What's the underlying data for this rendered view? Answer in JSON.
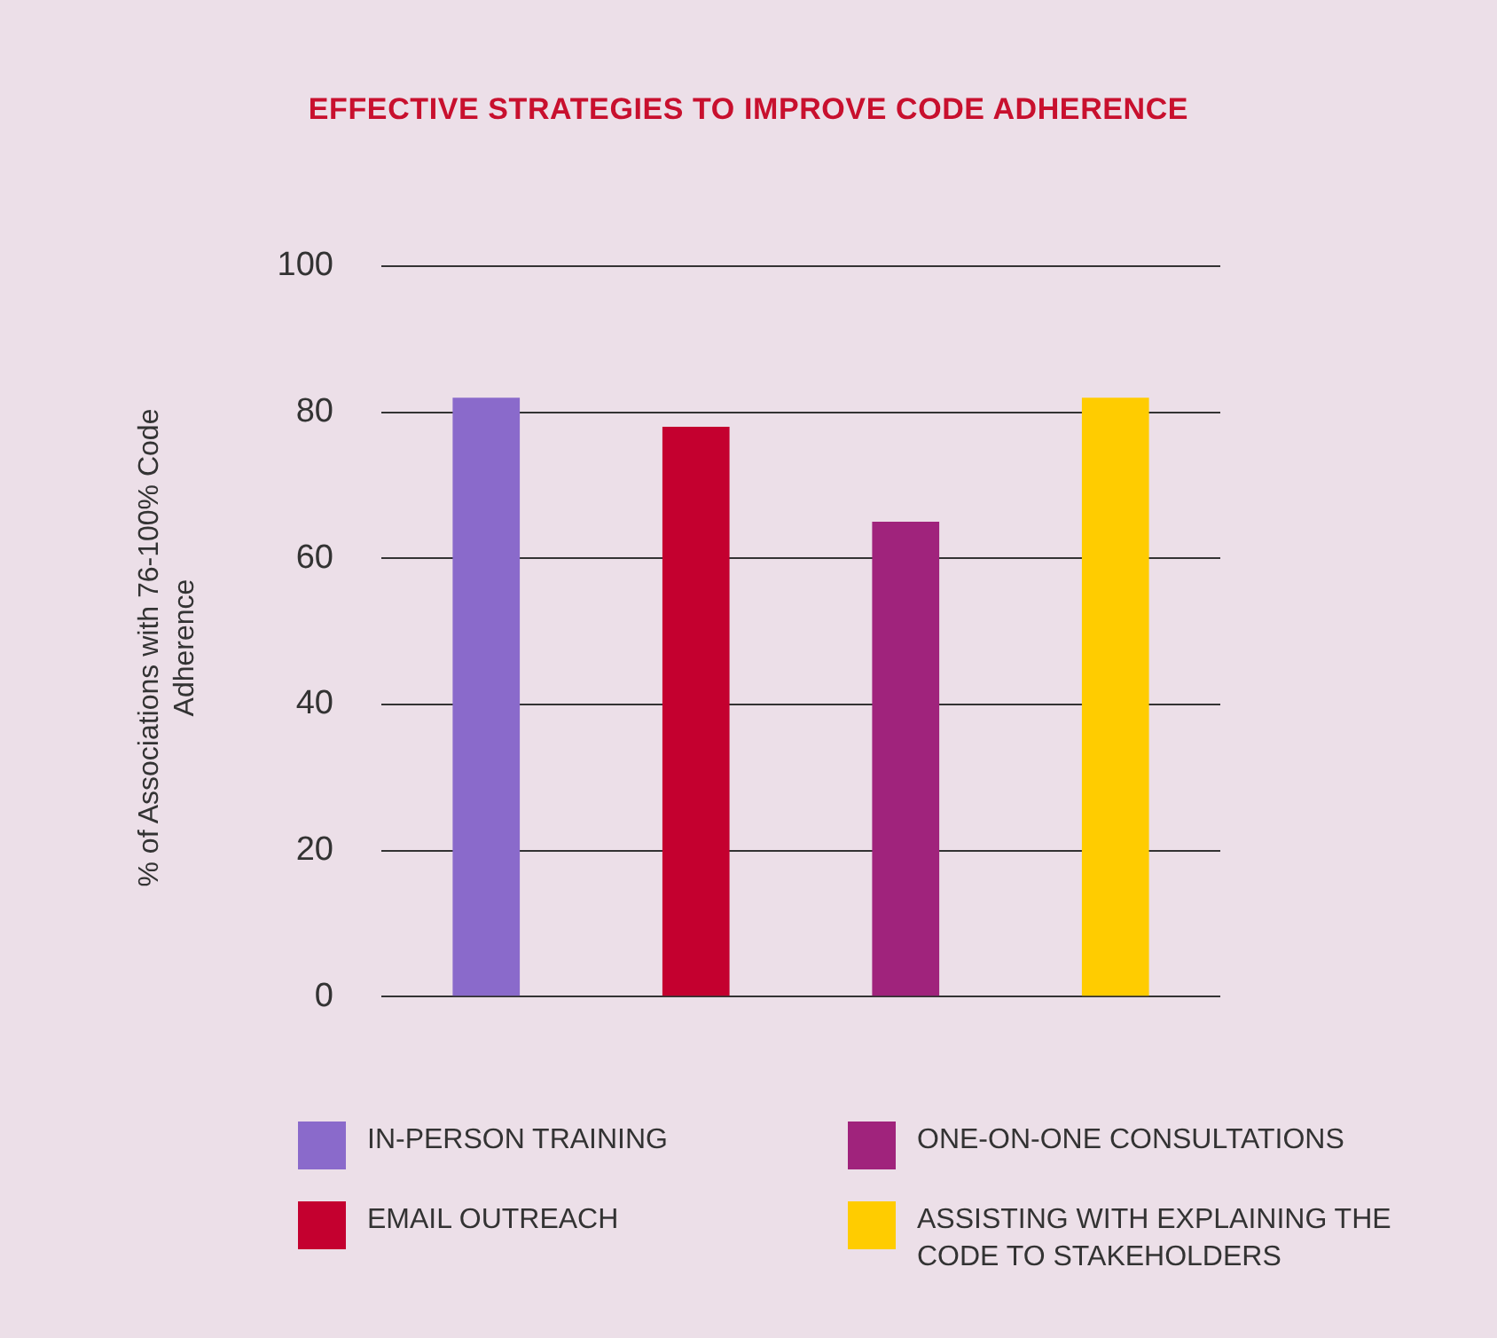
{
  "chart_data": {
    "type": "bar",
    "title": "EFFECTIVE STRATEGIES TO IMPROVE CODE ADHERENCE",
    "ylabel": "% of Associations with 76-100% Code Adherence",
    "categories": [
      null,
      null,
      null,
      null
    ],
    "series": [
      {
        "name": "IN-PERSON TRAINING",
        "color": "#8a6acb",
        "values": [
          82,
          null,
          null,
          null
        ]
      },
      {
        "name": "EMAIL OUTREACH",
        "color": "#c4002f",
        "values": [
          null,
          78,
          null,
          null
        ]
      },
      {
        "name": "ONE-ON-ONE CONSULTATIONS",
        "color": "#a0237c",
        "values": [
          null,
          null,
          65,
          null
        ]
      },
      {
        "name": "ASSISTING WITH EXPLAINING THE CODE TO STAKEHOLDERS",
        "color": "#ffcc00",
        "values": [
          null,
          null,
          null,
          82
        ]
      }
    ],
    "ylim": [
      0,
      100
    ],
    "yticks": [
      0,
      20,
      40,
      60,
      80,
      100
    ],
    "grid": "y",
    "legend": "bottom"
  }
}
